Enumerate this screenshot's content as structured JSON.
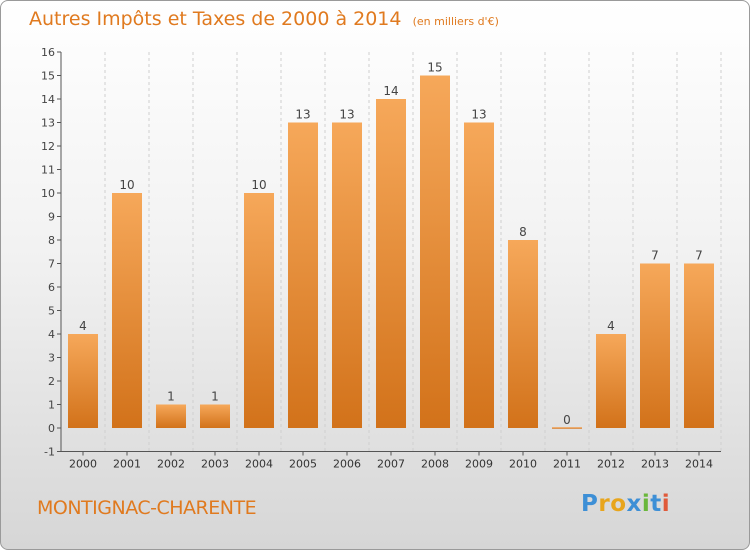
{
  "title": "Autres Impôts et Taxes de 2000 à 2014",
  "unit": "(en milliers d'€)",
  "town": "MONTIGNAC-CHARENTE",
  "logo": {
    "letters": [
      "P",
      "r",
      "o",
      "x",
      "i",
      "t",
      "i"
    ],
    "colors": [
      "#3d8fd6",
      "#e8a51c",
      "#e8a51c",
      "#3d8fd6",
      "#6ab73b",
      "#3d8fd6",
      "#e05a3a"
    ]
  },
  "colors": {
    "accent": "#e07a1f",
    "bar_top": "#f6a85a",
    "bar_bottom": "#d2721a"
  },
  "chart_data": {
    "type": "bar",
    "categories": [
      "2000",
      "2001",
      "2002",
      "2003",
      "2004",
      "2005",
      "2006",
      "2007",
      "2008",
      "2009",
      "2010",
      "2011",
      "2012",
      "2013",
      "2014"
    ],
    "values": [
      4,
      10,
      1,
      1,
      10,
      13,
      13,
      14,
      15,
      13,
      8,
      0,
      4,
      7,
      7
    ],
    "ylim": [
      -1,
      16
    ],
    "yticks": [
      -1,
      0,
      1,
      2,
      3,
      4,
      5,
      6,
      7,
      8,
      9,
      10,
      11,
      12,
      13,
      14,
      15,
      16
    ],
    "grid": "vertical-dashed",
    "data_labels": true
  }
}
